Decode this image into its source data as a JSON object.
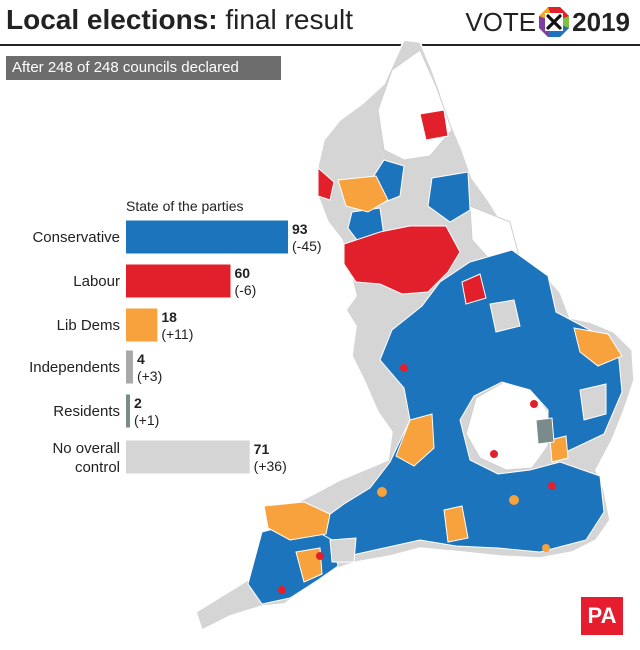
{
  "header": {
    "title_bold": "Local elections:",
    "title_light": "final result",
    "vote_word": "VOTE",
    "vote_year": "2019",
    "subtitle": "After 248 of 248 councils declared"
  },
  "brand": {
    "logo": "PA"
  },
  "colors": {
    "conservative": "#1c74bc",
    "labour": "#e2202b",
    "libdem": "#f7a23d",
    "independent": "#a9a9a9",
    "residents": "#7b8b8b",
    "noc": "#d5d5d5",
    "banner": "#6d6d6d",
    "pa_red": "#e51d2e"
  },
  "chart_data": {
    "type": "bar",
    "title": "State of the parties",
    "orientation": "horizontal",
    "categories": [
      "Conservative",
      "Labour",
      "Lib Dems",
      "Independents",
      "Residents",
      "No overall control"
    ],
    "values": [
      93,
      60,
      18,
      4,
      2,
      71
    ],
    "changes": [
      "(-45)",
      "(-6)",
      "(+11)",
      "(+3)",
      "(+1)",
      "(+36)"
    ],
    "xlim": [
      0,
      93
    ],
    "grid": false,
    "legend": "none"
  }
}
